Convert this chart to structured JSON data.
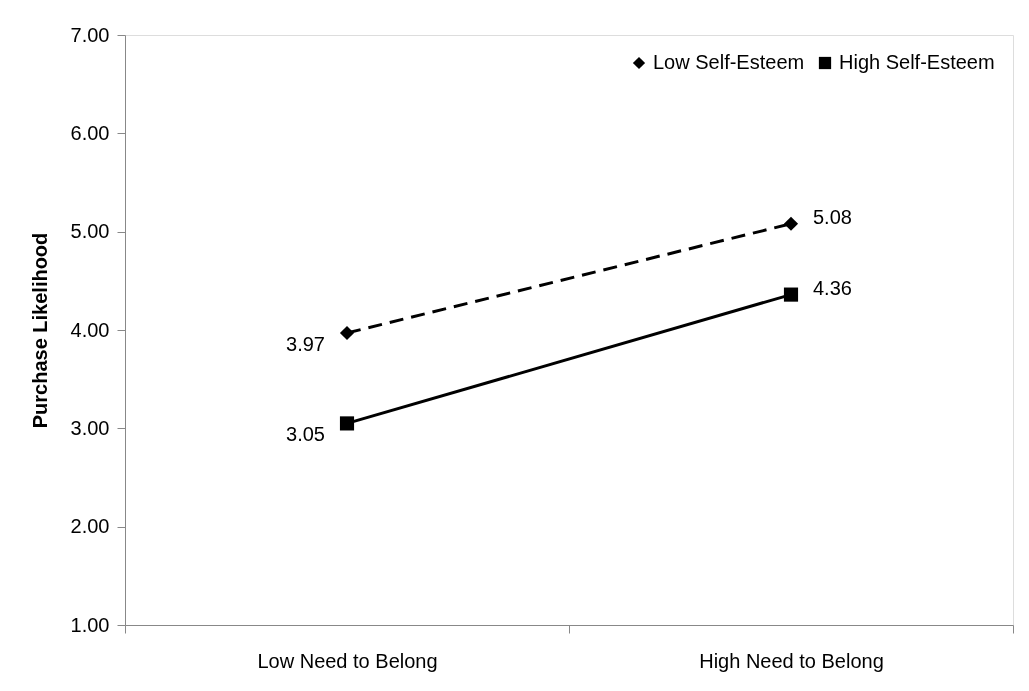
{
  "chart_data": {
    "type": "line",
    "ylabel": "Purchase Likelihood",
    "categories": [
      "Low Need to Belong",
      "High Need to Belong"
    ],
    "series": [
      {
        "name": "Low Self-Esteem",
        "color": "#000000",
        "values": [
          3.97,
          5.08
        ],
        "marker": "diamond",
        "line_style": "dashed"
      },
      {
        "name": "High Self-Esteem",
        "color": "#000000",
        "values": [
          3.05,
          4.36
        ],
        "marker": "square",
        "line_style": "solid"
      }
    ],
    "ylim": [
      1,
      7
    ],
    "yticks": [
      {
        "value": 1,
        "label": "1.00"
      },
      {
        "value": 2,
        "label": "2.00"
      },
      {
        "value": 3,
        "label": "3.00"
      },
      {
        "value": 4,
        "label": "4.00"
      },
      {
        "value": 5,
        "label": "5.00"
      },
      {
        "value": 6,
        "label": "6.00"
      },
      {
        "value": 7,
        "label": "7.00"
      }
    ],
    "data_labels": true,
    "grid": false,
    "legend": "top right"
  }
}
